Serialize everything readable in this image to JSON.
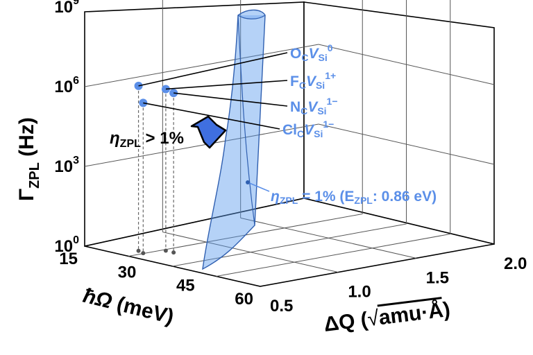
{
  "chart_data": {
    "type": "scatter",
    "projection": "3d",
    "axes": {
      "z": {
        "label_main": "Γ",
        "label_sub": "ZPL",
        "label_unit": "(Hz)",
        "scale": "log",
        "range": [
          1,
          1000000000
        ],
        "ticks": [
          {
            "base": "10",
            "exp": "0",
            "value": 1
          },
          {
            "base": "10",
            "exp": "3",
            "value": 1000
          },
          {
            "base": "10",
            "exp": "6",
            "value": 1000000
          },
          {
            "base": "10",
            "exp": "9",
            "value": 1000000000
          }
        ]
      },
      "x": {
        "label_main": "ħΩ",
        "label_unit": "(meV)",
        "range": [
          15,
          60
        ],
        "ticks": [
          "15",
          "30",
          "45",
          "60"
        ]
      },
      "y": {
        "label_main": "ΔQ (",
        "label_radicand": "amu·Å",
        "label_close": ")",
        "range": [
          0.5,
          2.0
        ],
        "ticks": [
          "0.5",
          "1.0",
          "1.5",
          "2.0"
        ]
      }
    },
    "grid": true,
    "series": [
      {
        "name": "OCVSi0",
        "label": {
          "el": "O",
          "sub": "C",
          "v": "V",
          "vsub": "Si",
          "sup": "0"
        },
        "hw_meV": 24,
        "dQ": 0.62,
        "gamma_Hz": 1600000
      },
      {
        "name": "FCVSi1+",
        "label": {
          "el": "F",
          "sub": "C",
          "v": "V",
          "vsub": "Si",
          "sup": "1+"
        },
        "hw_meV": 27,
        "dQ": 0.72,
        "gamma_Hz": 1200000
      },
      {
        "name": "NCVSi1-",
        "label": {
          "el": "N",
          "sub": "C",
          "v": "V",
          "vsub": "Si",
          "sup": "1−"
        },
        "hw_meV": 29,
        "dQ": 0.72,
        "gamma_Hz": 1000000
      },
      {
        "name": "ClCVSi1-",
        "label": {
          "el": "Cl",
          "sub": "C",
          "v": "V",
          "vsub": "Si",
          "sup": "1−"
        },
        "hw_meV": 26,
        "dQ": 0.6,
        "gamma_Hz": 450000
      }
    ],
    "surface": {
      "eta_label": "η",
      "eta_sub": "ZPL",
      "eta_text": " = 1% (E",
      "e_sub": "ZPL",
      "e_text": ": 0.86 eV)"
    },
    "arrow": {
      "eta_label": "η",
      "eta_sub": "ZPL",
      "text": " > 1%"
    },
    "colors": {
      "surface": "#5b9bee",
      "points": "#5b8fe8",
      "text": "#5b8fe8",
      "arrow": "#3f6fe0"
    }
  }
}
